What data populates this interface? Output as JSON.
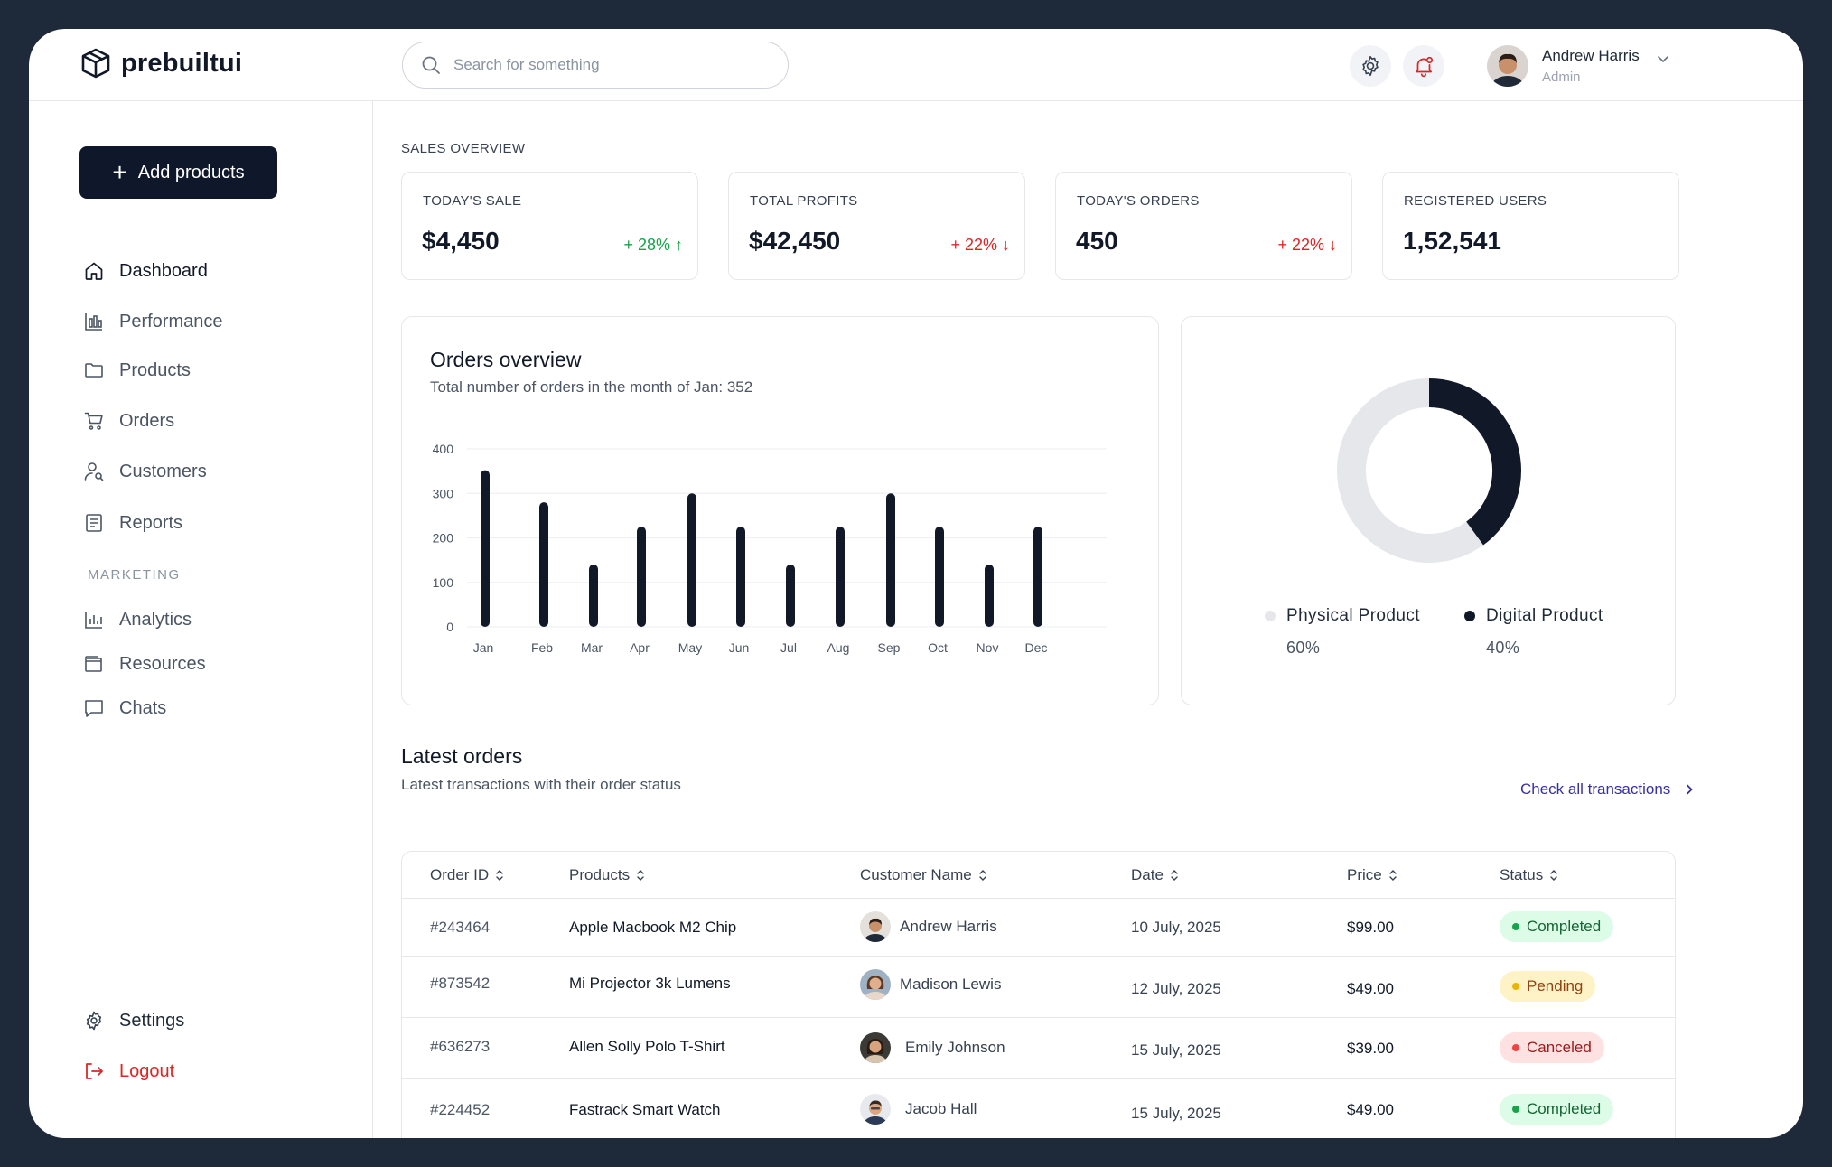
{
  "brand": {
    "name": "prebuiltui",
    "icon": "cube-logo-icon"
  },
  "header": {
    "search_placeholder": "Search for something",
    "settings_icon": "gear-icon",
    "notification_icon": "bell-icon",
    "user": {
      "name": "Andrew Harris",
      "role": "Admin"
    }
  },
  "sidebar": {
    "add_button": "Add products",
    "items": [
      {
        "label": "Dashboard",
        "icon": "home-icon",
        "active": true
      },
      {
        "label": "Performance",
        "icon": "bar-chart-icon"
      },
      {
        "label": "Products",
        "icon": "folder-icon"
      },
      {
        "label": "Orders",
        "icon": "cart-icon"
      },
      {
        "label": "Customers",
        "icon": "user-search-icon"
      },
      {
        "label": "Reports",
        "icon": "report-icon"
      }
    ],
    "marketing_label": "MARKETING",
    "marketing_items": [
      {
        "label": "Analytics",
        "icon": "analytics-icon"
      },
      {
        "label": "Resources",
        "icon": "wallet-icon"
      },
      {
        "label": "Chats",
        "icon": "chat-icon"
      }
    ],
    "settings_label": "Settings",
    "logout_label": "Logout"
  },
  "sales": {
    "heading": "SALES OVERVIEW",
    "cards": [
      {
        "label": "TODAY'S SALE",
        "value": "$4,450",
        "change": "+ 28%",
        "trend": "up"
      },
      {
        "label": "TOTAL PROFITS",
        "value": "$42,450",
        "change": "+ 22%",
        "trend": "down"
      },
      {
        "label": "TODAY'S ORDERS",
        "value": "450",
        "change": "+ 22%",
        "trend": "down"
      },
      {
        "label": "REGISTERED USERS",
        "value": "1,52,541",
        "change": "",
        "trend": ""
      }
    ]
  },
  "orders_overview": {
    "title": "Orders overview",
    "subtitle": "Total number of orders in the month of Jan: 352"
  },
  "chart_data": [
    {
      "type": "bar",
      "title": "Orders overview",
      "categories": [
        "Jan",
        "Feb",
        "Mar",
        "Apr",
        "May",
        "Jun",
        "Jul",
        "Aug",
        "Sep",
        "Oct",
        "Nov",
        "Dec"
      ],
      "values": [
        352,
        280,
        140,
        225,
        300,
        225,
        140,
        225,
        300,
        225,
        140,
        225
      ],
      "ylim": [
        0,
        400
      ],
      "yticks": [
        0,
        100,
        200,
        300,
        400
      ],
      "grid": true,
      "bar_color": "#111827"
    },
    {
      "type": "pie",
      "style": "donut",
      "labels": [
        "Physical Product",
        "Digital Product"
      ],
      "values": [
        60,
        40
      ],
      "display": [
        "60%",
        "40%"
      ],
      "colors": [
        "#e5e7eb",
        "#111827"
      ]
    }
  ],
  "latest": {
    "title": "Latest orders",
    "subtitle": "Latest transactions with their order status",
    "link": "Check all transactions",
    "columns": [
      "Order ID",
      "Products",
      "Customer Name",
      "Date",
      "Price",
      "Status"
    ],
    "rows": [
      {
        "id": "#243464",
        "product": "Apple Macbook M2 Chip",
        "customer": "Andrew Harris",
        "date": "10 July, 2025",
        "price": "$99.00",
        "status": "Completed"
      },
      {
        "id": "#873542",
        "product": "Mi Projector 3k Lumens",
        "customer": "Madison Lewis",
        "date": "12 July, 2025",
        "price": "$49.00",
        "status": "Pending"
      },
      {
        "id": "#636273",
        "product": "Allen Solly Polo T-Shirt",
        "customer": "Emily Johnson",
        "date": "15 July, 2025",
        "price": "$39.00",
        "status": "Canceled"
      },
      {
        "id": "#224452",
        "product": "Fastrack Smart Watch",
        "customer": "Jacob Hall",
        "date": "15 July, 2025",
        "price": "$49.00",
        "status": "Completed"
      }
    ]
  },
  "colors": {
    "primary": "#0f172a",
    "positive": "#16a34a",
    "negative": "#dc2626",
    "link": "#3730a3",
    "completed_bg": "#dcfce7",
    "pending_bg": "#fef3c7",
    "canceled_bg": "#fee2e2"
  }
}
